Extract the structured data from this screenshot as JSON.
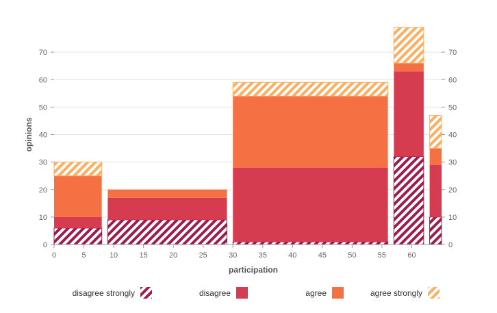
{
  "chart_data": {
    "type": "bar",
    "variant": "stacked-variable-width (marimekko)",
    "xlabel": "participation",
    "ylabel": "opinions",
    "xlim": [
      0,
      65
    ],
    "ylim": [
      0,
      80
    ],
    "x_ticks": [
      0,
      5,
      10,
      15,
      20,
      25,
      30,
      35,
      40,
      45,
      50,
      55,
      60
    ],
    "y_ticks": [
      0,
      10,
      20,
      30,
      40,
      50,
      60,
      70
    ],
    "grid": "horizontal",
    "legend_position": "bottom",
    "right_axis_mirrors_left": true,
    "bars": [
      {
        "x0": 0,
        "x1": 8,
        "values": [
          6,
          4,
          15,
          5
        ]
      },
      {
        "x0": 9,
        "x1": 29,
        "values": [
          9,
          8,
          3,
          0
        ]
      },
      {
        "x0": 30,
        "x1": 56,
        "values": [
          1,
          27,
          26,
          5
        ]
      },
      {
        "x0": 57,
        "x1": 62,
        "values": [
          32,
          31,
          3,
          13
        ]
      },
      {
        "x0": 63,
        "x1": 65,
        "values": [
          10,
          19,
          6,
          12
        ]
      }
    ],
    "series": [
      {
        "name": "disagree strongly",
        "color": "#9e1b4d",
        "pattern": "hatch"
      },
      {
        "name": "disagree",
        "color": "#d63c50",
        "pattern": "solid"
      },
      {
        "name": "agree",
        "color": "#f57143",
        "pattern": "solid"
      },
      {
        "name": "agree strongly",
        "color": "#fcae61",
        "pattern": "hatch"
      }
    ]
  }
}
